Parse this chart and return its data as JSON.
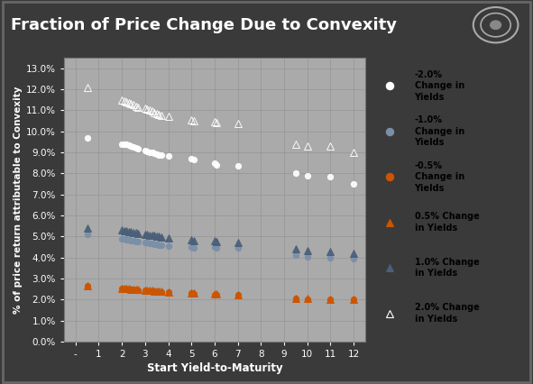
{
  "title": "Fraction of Price Change Due to Convexity",
  "xlabel": "Start Yield-to-Maturity",
  "ylabel": "% of price return attributable to Convexity",
  "background_color": "#3a3a3a",
  "plot_bg_color": "#aaaaaa",
  "title_color": "white",
  "axis_label_color": "white",
  "tick_color": "white",
  "legend_bg_color": "#aaaaaa",
  "series": [
    {
      "label": "-2.0%\nChange in\nYields",
      "color": "#ffffff",
      "marker": "o",
      "filled": true,
      "data_x": [
        0.5,
        2.0,
        2.1,
        2.2,
        2.3,
        2.4,
        2.5,
        2.6,
        2.7,
        3.0,
        3.1,
        3.2,
        3.3,
        3.4,
        3.5,
        3.6,
        3.7,
        4.0,
        5.0,
        5.1,
        6.0,
        6.1,
        7.0,
        9.5,
        10.0,
        11.0,
        12.0
      ],
      "data_y": [
        9.7,
        9.4,
        9.4,
        9.4,
        9.35,
        9.3,
        9.25,
        9.2,
        9.15,
        9.1,
        9.05,
        9.0,
        8.98,
        8.95,
        8.9,
        8.87,
        8.85,
        8.82,
        8.7,
        8.65,
        8.5,
        8.4,
        8.35,
        8.0,
        7.9,
        7.85,
        7.5
      ]
    },
    {
      "label": "-1.0%\nChange in\nYields",
      "color": "#7a8fa8",
      "marker": "o",
      "filled": true,
      "data_x": [
        0.5,
        2.0,
        2.1,
        2.2,
        2.3,
        2.4,
        2.5,
        2.6,
        2.7,
        3.0,
        3.1,
        3.2,
        3.3,
        3.4,
        3.5,
        3.6,
        3.7,
        4.0,
        5.0,
        5.1,
        6.0,
        6.1,
        7.0,
        9.5,
        10.0,
        11.0,
        12.0
      ],
      "data_y": [
        5.1,
        4.9,
        4.88,
        4.86,
        4.84,
        4.82,
        4.8,
        4.78,
        4.76,
        4.72,
        4.7,
        4.68,
        4.66,
        4.64,
        4.62,
        4.6,
        4.58,
        4.56,
        4.5,
        4.48,
        4.5,
        4.48,
        4.45,
        4.1,
        4.05,
        4.0,
        3.95
      ]
    },
    {
      "label": "-0.5%\nChange in\nYields",
      "color": "#cc5500",
      "marker": "o",
      "filled": true,
      "data_x": [
        0.5,
        2.0,
        2.1,
        2.2,
        2.3,
        2.4,
        2.5,
        2.6,
        2.7,
        3.0,
        3.1,
        3.2,
        3.3,
        3.4,
        3.5,
        3.6,
        3.7,
        4.0,
        5.0,
        5.1,
        6.0,
        6.1,
        7.0,
        9.5,
        10.0,
        11.0,
        12.0
      ],
      "data_y": [
        2.65,
        2.52,
        2.51,
        2.5,
        2.49,
        2.48,
        2.47,
        2.46,
        2.45,
        2.43,
        2.42,
        2.41,
        2.4,
        2.39,
        2.38,
        2.37,
        2.36,
        2.35,
        2.3,
        2.28,
        2.25,
        2.24,
        2.22,
        2.05,
        2.03,
        2.02,
        2.0
      ]
    },
    {
      "label": "0.5% Change\nin Yields",
      "color": "#cc5500",
      "marker": "^",
      "filled": true,
      "data_x": [
        0.5,
        2.0,
        2.1,
        2.2,
        2.3,
        2.4,
        2.5,
        2.6,
        2.7,
        3.0,
        3.1,
        3.2,
        3.3,
        3.4,
        3.5,
        3.6,
        3.7,
        4.0,
        5.0,
        5.1,
        6.0,
        6.1,
        7.0,
        9.5,
        10.0,
        11.0,
        12.0
      ],
      "data_y": [
        2.65,
        2.55,
        2.54,
        2.53,
        2.52,
        2.51,
        2.5,
        2.49,
        2.48,
        2.46,
        2.45,
        2.44,
        2.43,
        2.42,
        2.41,
        2.4,
        2.39,
        2.38,
        2.33,
        2.31,
        2.28,
        2.27,
        2.25,
        2.08,
        2.06,
        2.04,
        2.02
      ]
    },
    {
      "label": "1.0% Change\nin Yields",
      "color": "#4a5f78",
      "marker": "^",
      "filled": true,
      "data_x": [
        0.5,
        2.0,
        2.1,
        2.2,
        2.3,
        2.4,
        2.5,
        2.6,
        2.7,
        3.0,
        3.1,
        3.2,
        3.3,
        3.4,
        3.5,
        3.6,
        3.7,
        4.0,
        5.0,
        5.1,
        6.0,
        6.1,
        7.0,
        9.5,
        10.0,
        11.0,
        12.0
      ],
      "data_y": [
        5.4,
        5.3,
        5.28,
        5.26,
        5.24,
        5.22,
        5.2,
        5.18,
        5.16,
        5.12,
        5.1,
        5.08,
        5.06,
        5.04,
        5.02,
        5.0,
        4.98,
        4.95,
        4.85,
        4.82,
        4.8,
        4.77,
        4.72,
        4.4,
        4.35,
        4.3,
        4.22
      ]
    },
    {
      "label": "2.0% Change\nin Yields",
      "color": "#ffffff",
      "marker": "^",
      "filled": false,
      "data_x": [
        0.5,
        2.0,
        2.1,
        2.2,
        2.3,
        2.4,
        2.5,
        2.6,
        2.7,
        3.0,
        3.1,
        3.2,
        3.3,
        3.4,
        3.5,
        3.6,
        3.7,
        4.0,
        5.0,
        5.1,
        6.0,
        6.1,
        7.0,
        9.5,
        10.0,
        11.0,
        12.0
      ],
      "data_y": [
        12.1,
        11.5,
        11.45,
        11.4,
        11.35,
        11.3,
        11.25,
        11.2,
        11.15,
        11.1,
        11.05,
        11.0,
        10.95,
        10.9,
        10.85,
        10.8,
        10.75,
        10.7,
        10.55,
        10.5,
        10.45,
        10.4,
        10.35,
        9.4,
        9.3,
        9.3,
        9.0
      ]
    }
  ],
  "legend_entries": [
    {
      "label": "-2.0%\nChange in\nYields",
      "color": "#ffffff",
      "marker": "o",
      "filled": true
    },
    {
      "label": "-1.0%\nChange in\nYields",
      "color": "#7a8fa8",
      "marker": "o",
      "filled": true
    },
    {
      "label": "-0.5%\nChange in\nYields",
      "color": "#cc5500",
      "marker": "o",
      "filled": true
    },
    {
      "label": "0.5% Change\nin Yields",
      "color": "#cc5500",
      "marker": "^",
      "filled": true
    },
    {
      "label": "1.0% Change\nin Yields",
      "color": "#4a5f78",
      "marker": "^",
      "filled": true
    },
    {
      "label": "2.0% Change\nin Yields",
      "color": "#ffffff",
      "marker": "^",
      "filled": false
    }
  ],
  "xticks": [
    0,
    1,
    2,
    3,
    4,
    5,
    6,
    7,
    8,
    9,
    10,
    11,
    12
  ],
  "xticklabels": [
    "-",
    "1",
    "2",
    "3",
    "4",
    "5",
    "6",
    "7",
    "8",
    "9",
    "10",
    "11",
    "12"
  ],
  "ytick_vals": [
    0.0,
    0.01,
    0.02,
    0.03,
    0.04,
    0.05,
    0.06,
    0.07,
    0.08,
    0.09,
    0.1,
    0.11,
    0.12,
    0.13
  ],
  "yticklabels": [
    "0.0%",
    "1.0%",
    "2.0%",
    "3.0%",
    "4.0%",
    "5.0%",
    "6.0%",
    "7.0%",
    "8.0%",
    "9.0%",
    "10.0%",
    "11.0%",
    "12.0%",
    "13.0%"
  ],
  "ylim": [
    0.0,
    0.135
  ],
  "xlim": [
    -0.5,
    12.5
  ]
}
